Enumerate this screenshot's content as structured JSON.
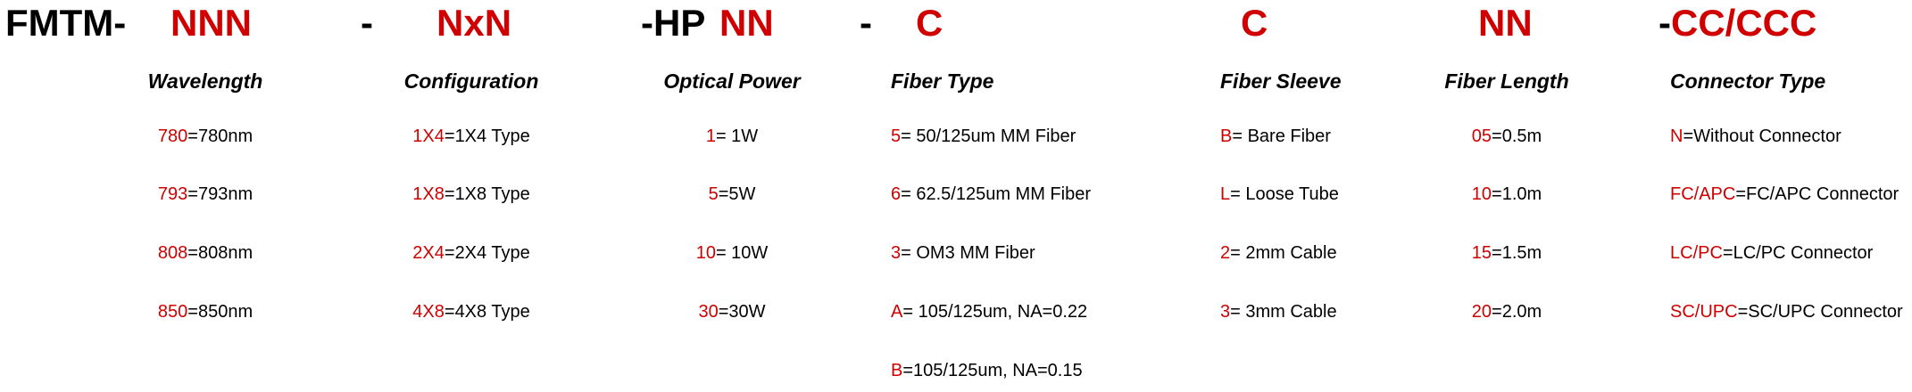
{
  "code": {
    "prefix": "FMTM-",
    "wavelength": "NNN",
    "sep1": "-",
    "configuration": "NxN",
    "hp_prefix": "-HP",
    "power": "NN",
    "sep2": "-",
    "fiber_type": "C",
    "fiber_sleeve": "C",
    "fiber_length": "NN",
    "connector_prefix": "-",
    "connector": "CC/CCC"
  },
  "colors": {
    "code": "#d00000",
    "text": "#000000"
  },
  "columns": [
    {
      "heading": "Wavelength",
      "items": [
        {
          "code": "780",
          "desc": "=780nm"
        },
        {
          "code": "793",
          "desc": "=793nm"
        },
        {
          "code": "808",
          "desc": "=808nm"
        },
        {
          "code": "850",
          "desc": "=850nm"
        }
      ]
    },
    {
      "heading": "Configuration",
      "items": [
        {
          "code": "1X4",
          "desc": "=1X4 Type"
        },
        {
          "code": "1X8",
          "desc": "=1X8 Type"
        },
        {
          "code": "2X4",
          "desc": "=2X4 Type"
        },
        {
          "code": "4X8",
          "desc": "=4X8 Type"
        }
      ]
    },
    {
      "heading": "Optical Power",
      "items": [
        {
          "code": "1",
          "desc": "= 1W"
        },
        {
          "code": "5",
          "desc": "=5W"
        },
        {
          "code": "10",
          "desc": "= 10W"
        },
        {
          "code": "30",
          "desc": "=30W"
        }
      ]
    },
    {
      "heading": "Fiber Type",
      "items": [
        {
          "code": "5",
          "desc": "= 50/125um MM Fiber"
        },
        {
          "code": "6",
          "desc": "= 62.5/125um MM Fiber"
        },
        {
          "code": "3",
          "desc": "= OM3 MM Fiber"
        },
        {
          "code": "A",
          "desc": "= 105/125um, NA=0.22"
        },
        {
          "code": "B",
          "desc": "=105/125um, NA=0.15"
        }
      ]
    },
    {
      "heading": "Fiber Sleeve",
      "items": [
        {
          "code": "B",
          "desc": "= Bare Fiber"
        },
        {
          "code": "L",
          "desc": "= Loose Tube"
        },
        {
          "code": "2",
          "desc": "= 2mm Cable"
        },
        {
          "code": "3",
          "desc": "= 3mm Cable"
        }
      ]
    },
    {
      "heading": "Fiber Length",
      "items": [
        {
          "code": "05",
          "desc": "=0.5m"
        },
        {
          "code": "10",
          "desc": "=1.0m"
        },
        {
          "code": "15",
          "desc": "=1.5m"
        },
        {
          "code": "20",
          "desc": "=2.0m"
        }
      ]
    },
    {
      "heading": "Connector Type",
      "items": [
        {
          "code": "N",
          "desc": "=Without Connector"
        },
        {
          "code": "FC/APC",
          "desc": "=FC/APC Connector"
        },
        {
          "code": "LC/PC",
          "desc": "=LC/PC Connector"
        },
        {
          "code": "SC/UPC",
          "desc": "=SC/UPC Connector"
        }
      ]
    }
  ]
}
